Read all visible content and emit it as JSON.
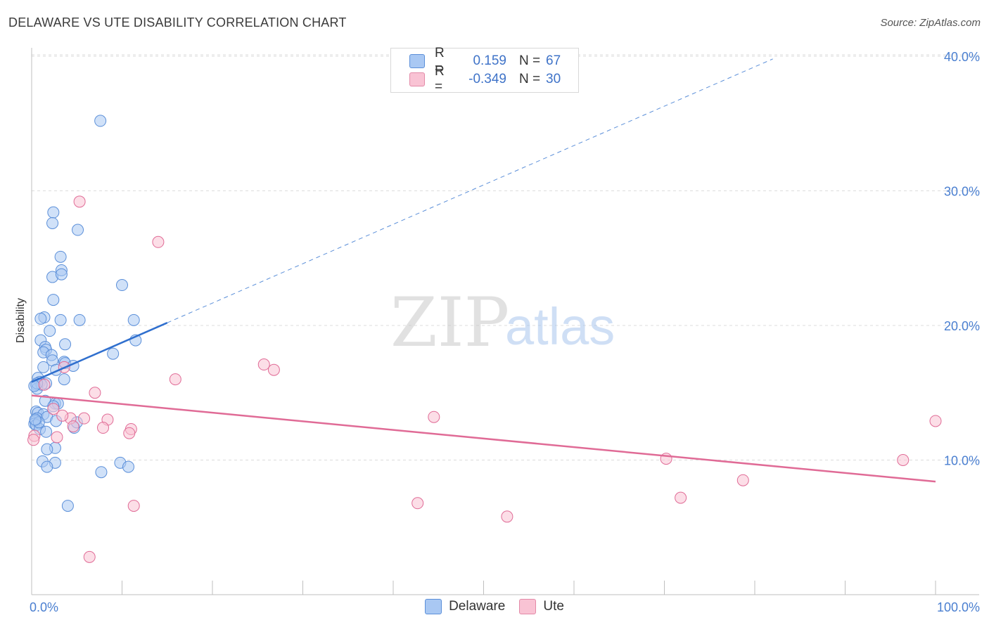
{
  "header": {
    "title": "DELAWARE VS UTE DISABILITY CORRELATION CHART",
    "source": "Source: ZipAtlas.com"
  },
  "legend": {
    "rows": [
      {
        "r_label": "R =",
        "r_value": "0.159",
        "n_label": "N =",
        "n_value": "67",
        "color": "#a9c8f3",
        "border": "#5b8fd9"
      },
      {
        "r_label": "R =",
        "r_value": "-0.349",
        "n_label": "N =",
        "n_value": "30",
        "color": "#f9c3d4",
        "border": "#e38aa8"
      }
    ]
  },
  "bottom_legend": [
    {
      "label": "Delaware",
      "color": "#a9c8f3",
      "border": "#5b8fd9"
    },
    {
      "label": "Ute",
      "color": "#f9c3d4",
      "border": "#e38aa8"
    }
  ],
  "watermark": {
    "zip": "ZIP",
    "atlas": "atlas"
  },
  "chart_data": {
    "type": "scatter",
    "title": "DELAWARE VS UTE DISABILITY CORRELATION CHART",
    "xlabel": "",
    "ylabel": "Disability",
    "xlim": [
      0,
      100
    ],
    "ylim": [
      0,
      40
    ],
    "x_tick_labels": [
      "0.0%",
      "100.0%"
    ],
    "y_ticks": [
      10,
      20,
      30,
      40
    ],
    "y_tick_labels": [
      "10.0%",
      "20.0%",
      "30.0%",
      "40.0%"
    ],
    "grid": true,
    "series": [
      {
        "name": "Delaware",
        "color": "#5b8fd9",
        "fill": "#a9c8f3",
        "points": [
          [
            7.6,
            35.2
          ],
          [
            2.4,
            28.4
          ],
          [
            2.3,
            27.6
          ],
          [
            5.1,
            27.1
          ],
          [
            3.2,
            25.1
          ],
          [
            3.3,
            24.1
          ],
          [
            2.3,
            23.6
          ],
          [
            3.3,
            23.8
          ],
          [
            10.0,
            23.0
          ],
          [
            2.4,
            21.9
          ],
          [
            1.4,
            20.6
          ],
          [
            1.0,
            20.5
          ],
          [
            3.2,
            20.4
          ],
          [
            5.3,
            20.4
          ],
          [
            11.3,
            20.4
          ],
          [
            2.0,
            19.6
          ],
          [
            1.0,
            18.9
          ],
          [
            11.5,
            18.9
          ],
          [
            3.7,
            18.6
          ],
          [
            1.5,
            18.4
          ],
          [
            1.6,
            18.2
          ],
          [
            1.3,
            18.0
          ],
          [
            2.2,
            17.8
          ],
          [
            9.0,
            17.9
          ],
          [
            2.3,
            17.4
          ],
          [
            3.6,
            17.3
          ],
          [
            3.7,
            17.2
          ],
          [
            4.6,
            17.0
          ],
          [
            1.3,
            16.9
          ],
          [
            2.7,
            16.7
          ],
          [
            0.7,
            16.1
          ],
          [
            3.6,
            16.0
          ],
          [
            0.9,
            15.8
          ],
          [
            0.5,
            15.6
          ],
          [
            1.6,
            15.7
          ],
          [
            0.6,
            15.3
          ],
          [
            1.5,
            14.4
          ],
          [
            2.6,
            14.2
          ],
          [
            2.9,
            14.2
          ],
          [
            2.4,
            14.0
          ],
          [
            0.5,
            13.6
          ],
          [
            0.7,
            13.5
          ],
          [
            1.3,
            13.4
          ],
          [
            0.6,
            13.1
          ],
          [
            0.4,
            12.9
          ],
          [
            1.7,
            13.2
          ],
          [
            0.3,
            12.7
          ],
          [
            0.5,
            12.6
          ],
          [
            2.7,
            12.9
          ],
          [
            4.7,
            12.4
          ],
          [
            0.9,
            12.3
          ],
          [
            1.6,
            12.1
          ],
          [
            2.6,
            10.9
          ],
          [
            1.7,
            10.8
          ],
          [
            1.2,
            9.9
          ],
          [
            2.6,
            9.8
          ],
          [
            1.7,
            9.5
          ],
          [
            9.8,
            9.8
          ],
          [
            10.7,
            9.5
          ],
          [
            7.7,
            9.1
          ],
          [
            4.0,
            6.6
          ],
          [
            5.0,
            12.8
          ],
          [
            1.1,
            15.6
          ],
          [
            0.8,
            12.8
          ],
          [
            0.4,
            13.0
          ],
          [
            0.6,
            15.7
          ],
          [
            0.3,
            15.5
          ]
        ],
        "trend": {
          "x": [
            0,
            15
          ],
          "y": [
            15.8,
            20.2
          ]
        },
        "trend_extended": {
          "x": [
            15,
            82
          ],
          "y": [
            20.2,
            39.8
          ]
        }
      },
      {
        "name": "Ute",
        "color": "#e06b96",
        "fill": "#f9c3d4",
        "points": [
          [
            0.3,
            11.8
          ],
          [
            0.2,
            11.5
          ],
          [
            5.3,
            29.2
          ],
          [
            14.0,
            26.2
          ],
          [
            25.7,
            17.1
          ],
          [
            26.8,
            16.7
          ],
          [
            15.9,
            16.0
          ],
          [
            3.6,
            16.9
          ],
          [
            1.4,
            15.6
          ],
          [
            7.0,
            15.0
          ],
          [
            2.4,
            13.8
          ],
          [
            4.3,
            13.1
          ],
          [
            5.8,
            13.1
          ],
          [
            8.4,
            13.0
          ],
          [
            4.6,
            12.5
          ],
          [
            7.9,
            12.4
          ],
          [
            11.0,
            12.3
          ],
          [
            10.8,
            12.0
          ],
          [
            2.8,
            11.7
          ],
          [
            44.5,
            13.2
          ],
          [
            42.7,
            6.8
          ],
          [
            52.6,
            5.8
          ],
          [
            70.2,
            10.1
          ],
          [
            71.8,
            7.2
          ],
          [
            78.7,
            8.5
          ],
          [
            96.4,
            10.0
          ],
          [
            100.0,
            12.9
          ],
          [
            11.3,
            6.6
          ],
          [
            6.4,
            2.8
          ],
          [
            3.4,
            13.3
          ]
        ],
        "trend": {
          "x": [
            0,
            100
          ],
          "y": [
            14.8,
            8.4
          ]
        }
      }
    ]
  }
}
